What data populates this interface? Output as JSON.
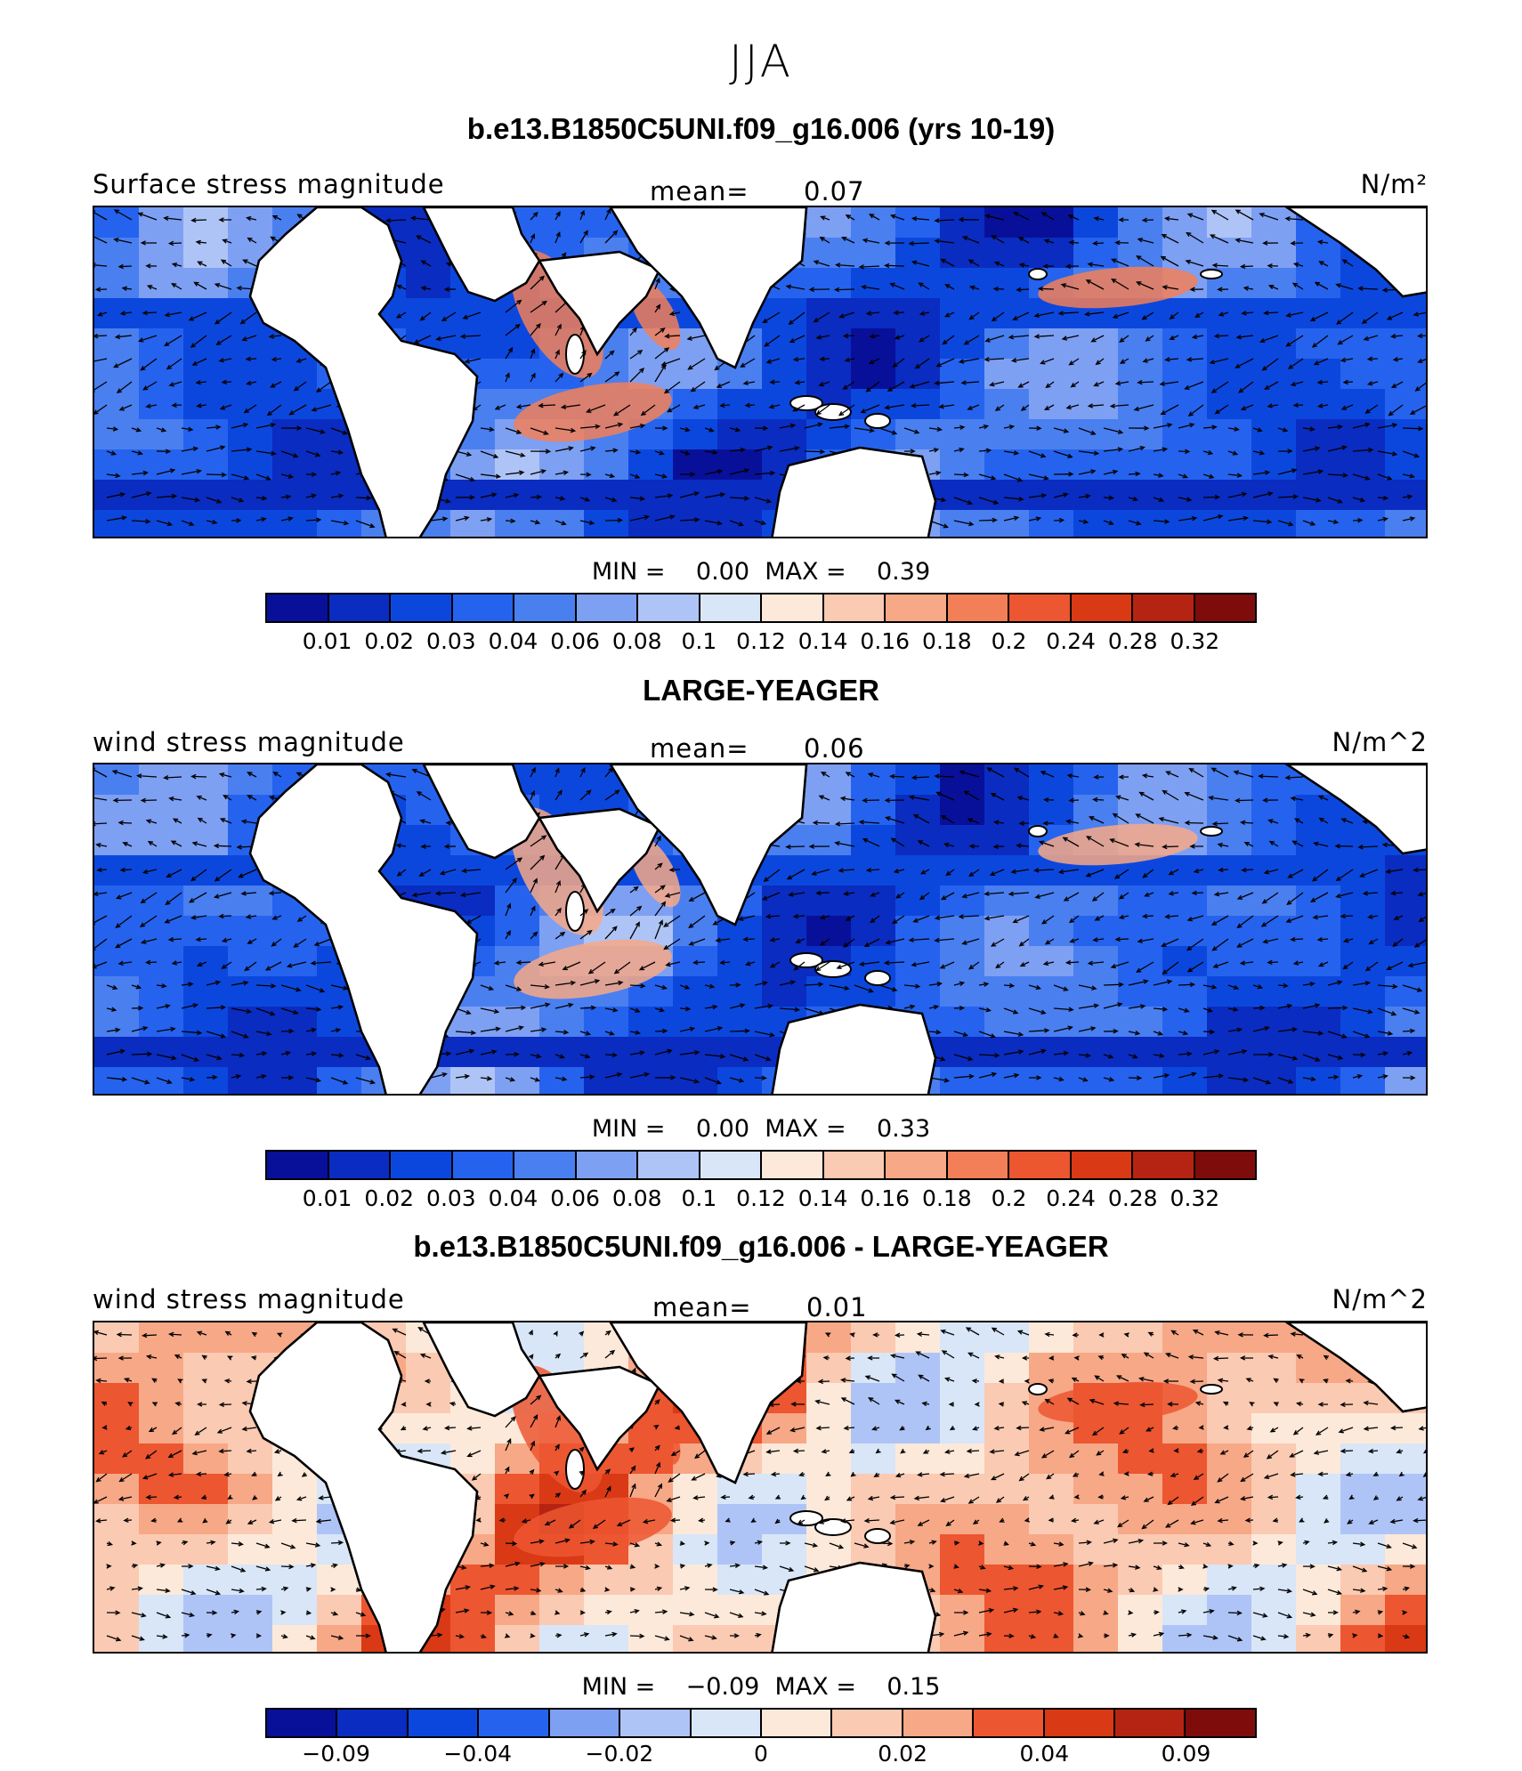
{
  "season": "JJA",
  "colors": {
    "seq": [
      "#08109a",
      "#0a2cc0",
      "#0c47dd",
      "#2563ee",
      "#4a7ff0",
      "#7ea0f3",
      "#afc4f6",
      "#d8e6f8",
      "#fde9d9",
      "#fbcab2",
      "#f7a886",
      "#f27f58",
      "#ec5630",
      "#d93915",
      "#b52412",
      "#7e0c0b"
    ],
    "land": "#ffffff",
    "coast": "#000000"
  },
  "panels": [
    {
      "title": "b.e13.B1850C5UNI.f09_g16.006 (yrs 10-19)",
      "left_label": "Surface stress magnitude",
      "mean_label": "mean=",
      "mean_value": "0.07",
      "units": "N/m²",
      "min_label": "MIN =",
      "min_value": "0.00",
      "max_label": "MAX =",
      "max_value": "0.39",
      "ticks": [
        "0.01",
        "0.02",
        "0.03",
        "0.04",
        "0.06",
        "0.08",
        "0.1",
        "0.12",
        "0.14",
        "0.16",
        "0.18",
        "0.2",
        "0.24",
        "0.28",
        "0.32"
      ],
      "bg_level": 3,
      "hot_level": 11
    },
    {
      "title": "LARGE-YEAGER",
      "left_label": "wind stress magnitude",
      "mean_label": "mean=",
      "mean_value": "0.06",
      "units": "N/m^2",
      "min_label": "MIN =",
      "min_value": "0.00",
      "max_label": "MAX =",
      "max_value": "0.33",
      "ticks": [
        "0.01",
        "0.02",
        "0.03",
        "0.04",
        "0.06",
        "0.08",
        "0.1",
        "0.12",
        "0.14",
        "0.16",
        "0.18",
        "0.2",
        "0.24",
        "0.28",
        "0.32"
      ],
      "bg_level": 3,
      "hot_level": 10
    },
    {
      "title": "b.e13.B1850C5UNI.f09_g16.006 - LARGE-YEAGER",
      "left_label": "wind stress magnitude",
      "mean_label": "mean=",
      "mean_value": "0.01",
      "units": "N/m^2",
      "min_label": "MIN =",
      "min_value": "−0.09",
      "max_label": "MAX =",
      "max_value": "0.15",
      "ticks": [
        "−0.09",
        "",
        "−0.04",
        "",
        "−0.02",
        "",
        "0",
        "",
        "0.02",
        "",
        "0.04",
        "",
        "0.09"
      ],
      "bg_level": 8,
      "hot_level": 12
    }
  ]
}
